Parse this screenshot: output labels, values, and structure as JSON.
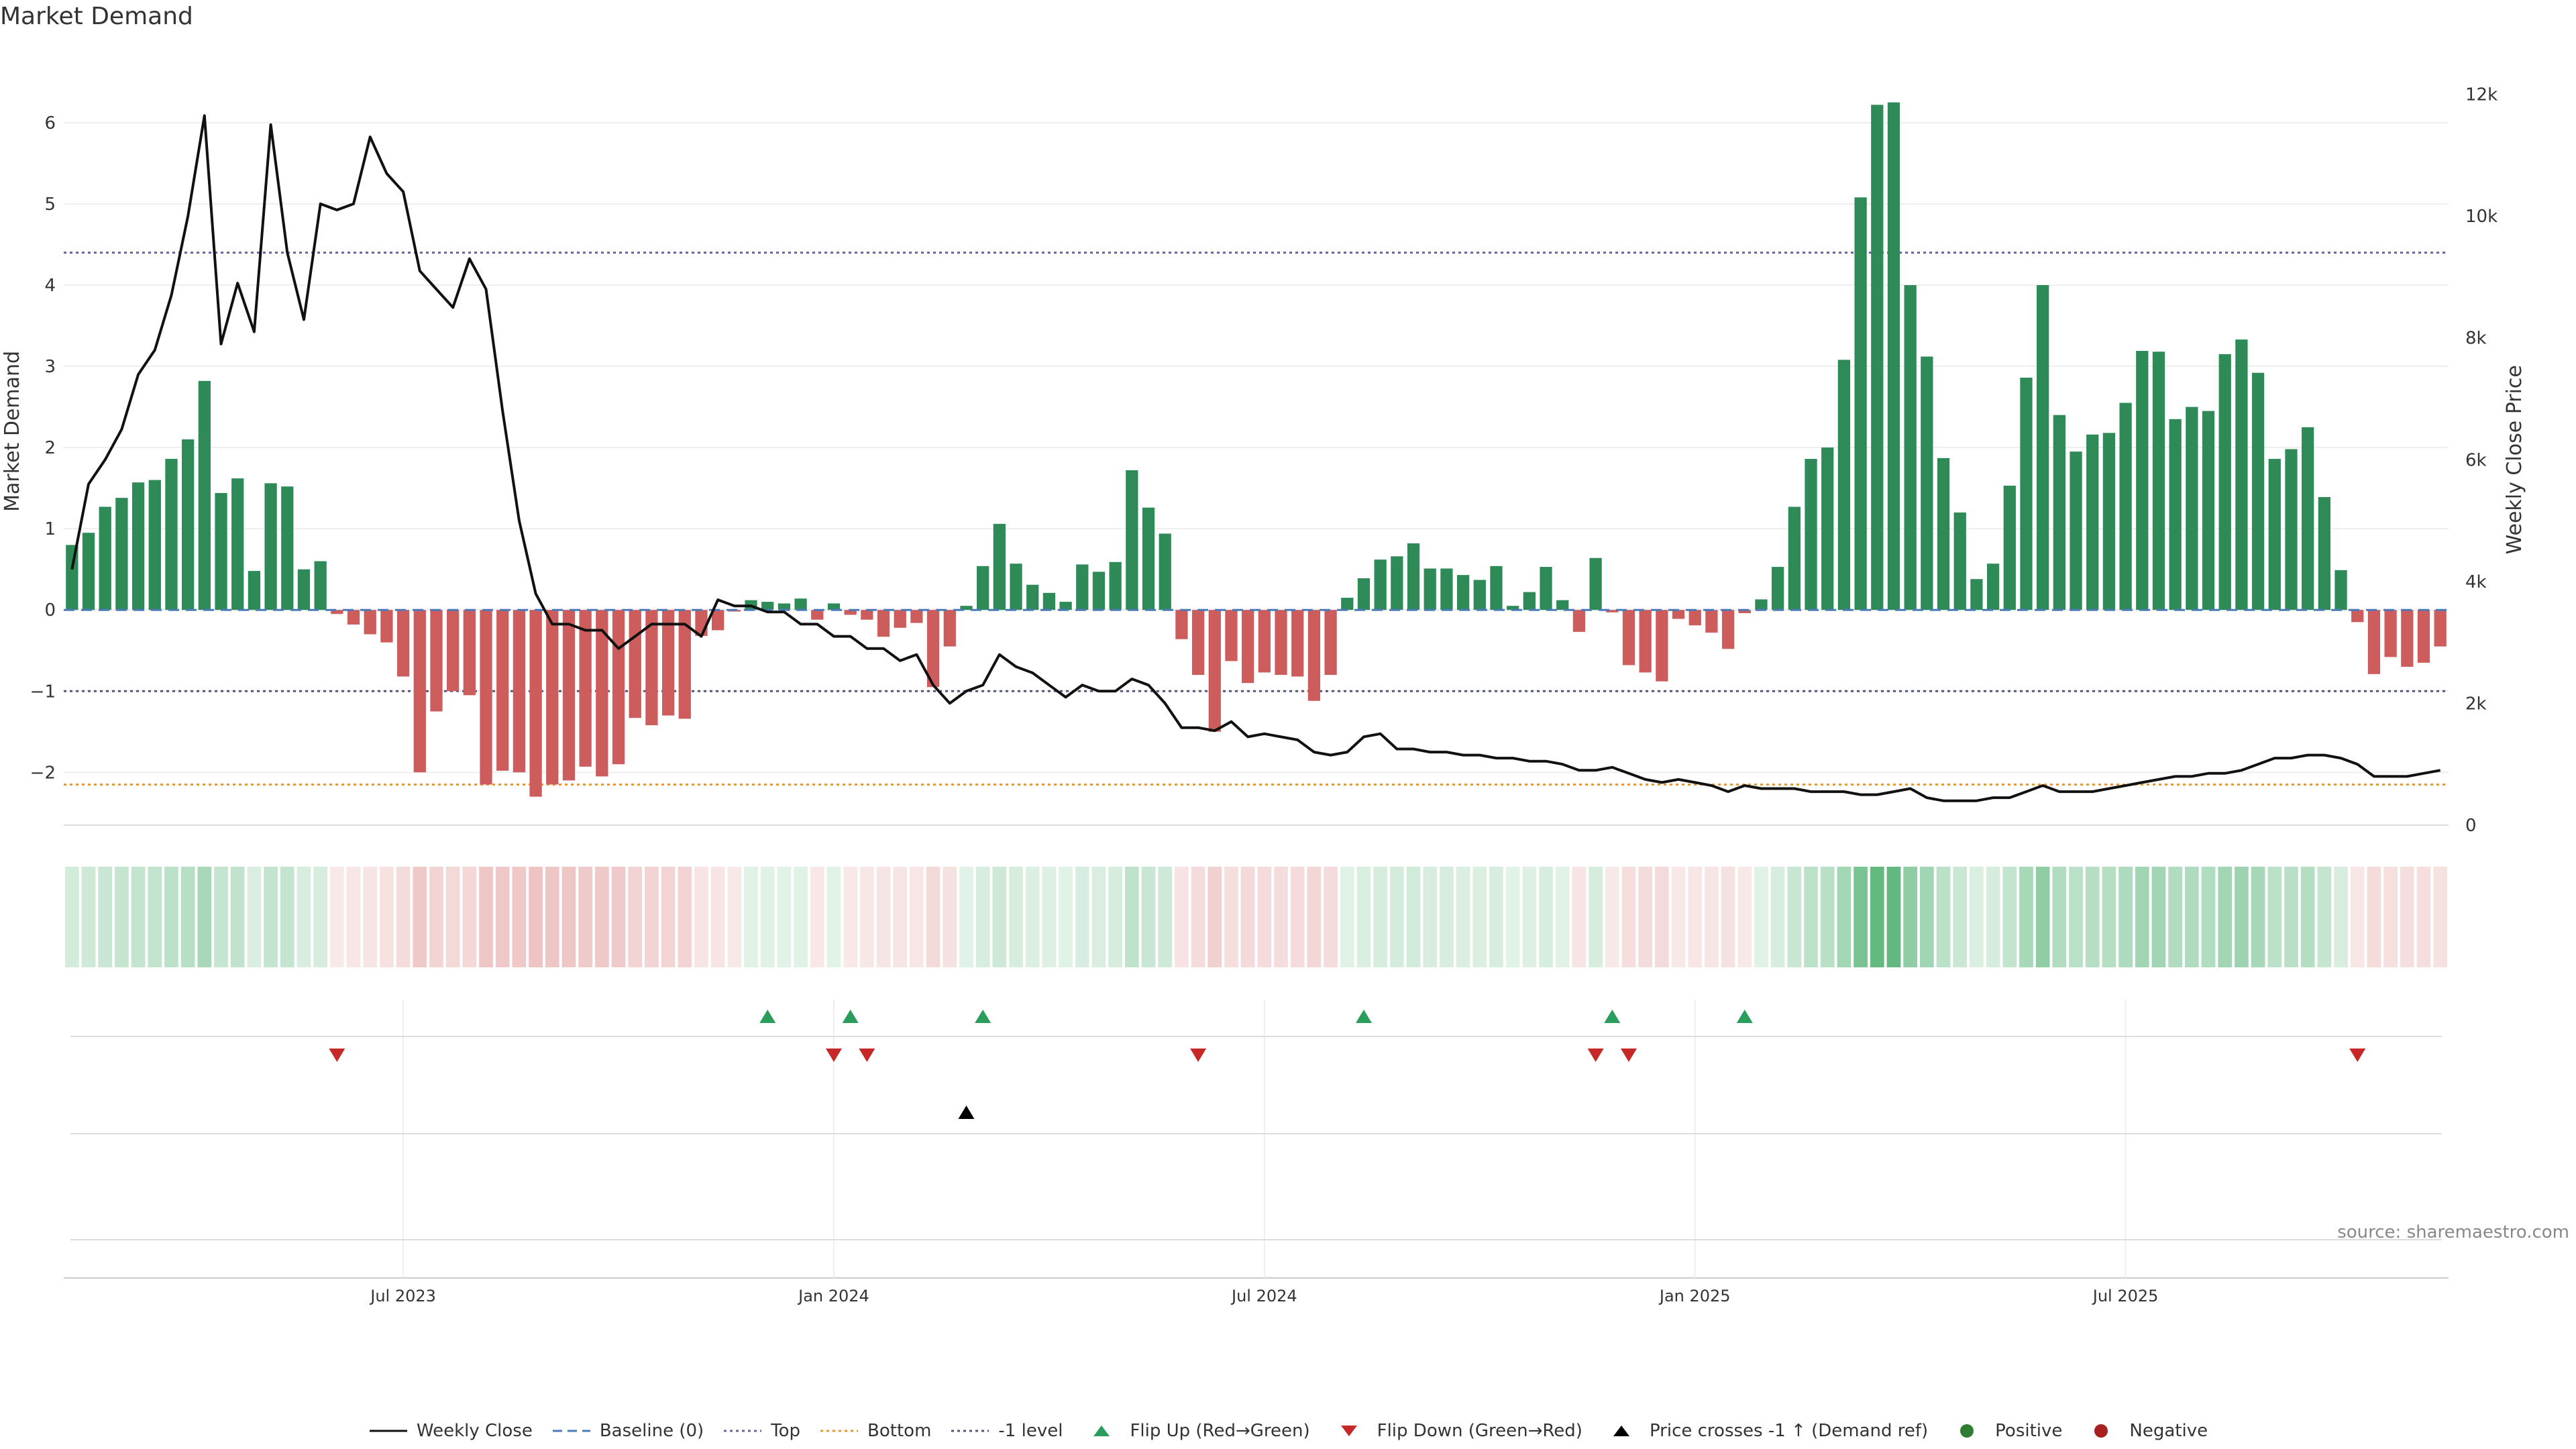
{
  "title": "Market Demand",
  "source": "source: sharemaestro.com",
  "legend": [
    {
      "label": "Weekly Close",
      "kind": "line",
      "color": "#111111"
    },
    {
      "label": "Baseline (0)",
      "kind": "dash",
      "color": "#4a7bb8"
    },
    {
      "label": "Top",
      "kind": "dot",
      "color": "#6b5fa3"
    },
    {
      "label": "Bottom",
      "kind": "dot",
      "color": "#e8962e"
    },
    {
      "label": "-1 level",
      "kind": "dot",
      "color": "#555577"
    },
    {
      "label": "Flip Up (Red→Green)",
      "kind": "tri-up",
      "color": "#2a9d5c"
    },
    {
      "label": "Flip Down (Green→Red)",
      "kind": "tri-down",
      "color": "#c62828"
    },
    {
      "label": "Price crosses -1 ↑ (Demand ref)",
      "kind": "tri-up",
      "color": "#000000"
    },
    {
      "label": "Positive",
      "kind": "dot-marker",
      "color": "#2e7d32"
    },
    {
      "label": "Negative",
      "kind": "dot-marker",
      "color": "#a82020"
    }
  ],
  "colors": {
    "positive_bar": "#2e8b57",
    "negative_bar": "#cd5c5c",
    "price_line": "#111111",
    "top_line": "#6b5fa3",
    "bottom_line": "#e8962e",
    "minus1_line": "#555577",
    "baseline": "#4a7bb8"
  },
  "chart_data": {
    "type": "bar",
    "title": "Market Demand",
    "ylabel": "Market Demand",
    "y2label": "Weekly Close Price",
    "ylim": [
      -2.65,
      6.85
    ],
    "y2lim": [
      0,
      12000
    ],
    "yticks": [
      -2,
      -1,
      0,
      1,
      2,
      3,
      4,
      5,
      6
    ],
    "y2ticks": [
      0,
      2000,
      4000,
      6000,
      8000,
      10000,
      12000
    ],
    "y2tick_labels": [
      "0",
      "2k",
      "4k",
      "6k",
      "8k",
      "10k",
      "12k"
    ],
    "xtick_labels": [
      "Jul 2023",
      "Jan 2024",
      "Jul 2024",
      "Jan 2025",
      "Jul 2025"
    ],
    "xtick_index": [
      20,
      46,
      72,
      98,
      124
    ],
    "grid": true,
    "levels": {
      "top": 4.4,
      "bottom": -2.15,
      "minus1": -1,
      "baseline": 0
    },
    "series": [
      {
        "name": "Market Demand",
        "values": [
          0.8,
          0.95,
          1.27,
          1.38,
          1.57,
          1.6,
          1.86,
          2.1,
          2.82,
          1.44,
          1.62,
          0.48,
          1.56,
          1.52,
          0.5,
          0.6,
          -0.05,
          -0.18,
          -0.3,
          -0.4,
          -0.82,
          -2.0,
          -1.25,
          -1.0,
          -1.05,
          -2.15,
          -1.98,
          -2.0,
          -2.3,
          -2.15,
          -2.1,
          -1.93,
          -2.05,
          -1.9,
          -1.33,
          -1.42,
          -1.3,
          -1.34,
          -0.32,
          -0.25,
          -0.02,
          0.12,
          0.1,
          0.08,
          0.14,
          -0.12,
          0.08,
          -0.06,
          -0.12,
          -0.33,
          -0.22,
          -0.16,
          -0.95,
          -0.45,
          0.05,
          0.54,
          1.06,
          0.57,
          0.31,
          0.21,
          0.1,
          0.56,
          0.47,
          0.59,
          1.72,
          1.26,
          0.94,
          -0.36,
          -0.8,
          -1.5,
          -0.63,
          -0.9,
          -0.77,
          -0.8,
          -0.82,
          -1.12,
          -0.8,
          0.15,
          0.39,
          0.62,
          0.66,
          0.82,
          0.51,
          0.51,
          0.43,
          0.37,
          0.54,
          0.05,
          0.22,
          0.53,
          0.12,
          -0.27,
          0.64,
          -0.03,
          -0.68,
          -0.77,
          -0.88,
          -0.11,
          -0.19,
          -0.28,
          -0.48,
          -0.04,
          0.13,
          0.53,
          1.27,
          1.86,
          2.0,
          3.08,
          5.08,
          6.22,
          6.25,
          4.0,
          3.12,
          1.87,
          1.2,
          0.38,
          0.57,
          1.53,
          2.86,
          4.0,
          2.4,
          1.95,
          2.16,
          2.18,
          2.55,
          3.19,
          3.18,
          2.35,
          2.5,
          2.45,
          3.15,
          3.33,
          2.92,
          1.86,
          1.98,
          2.25,
          1.39,
          0.49,
          -0.15,
          -0.79,
          -0.58,
          -0.7,
          -0.65,
          -0.45
        ]
      },
      {
        "name": "Weekly Close",
        "axis": "y2",
        "values": [
          4200,
          5600,
          6000,
          6500,
          7400,
          7800,
          8700,
          10000,
          11650,
          7900,
          8900,
          8100,
          11500,
          9400,
          8300,
          10200,
          10100,
          10200,
          11300,
          10700,
          10400,
          9100,
          8800,
          8500,
          9300,
          8800,
          6800,
          5000,
          3800,
          3300,
          3300,
          3200,
          3200,
          2900,
          3100,
          3300,
          3300,
          3300,
          3100,
          3700,
          3600,
          3600,
          3500,
          3500,
          3300,
          3300,
          3100,
          3100,
          2900,
          2900,
          2700,
          2800,
          2300,
          2000,
          2200,
          2300,
          2800,
          2600,
          2500,
          2300,
          2100,
          2300,
          2200,
          2200,
          2400,
          2300,
          2000,
          1600,
          1600,
          1550,
          1700,
          1450,
          1500,
          1450,
          1400,
          1200,
          1150,
          1200,
          1450,
          1500,
          1250,
          1250,
          1200,
          1200,
          1150,
          1150,
          1100,
          1100,
          1050,
          1050,
          1000,
          900,
          900,
          950,
          850,
          750,
          700,
          750,
          700,
          650,
          550,
          650,
          600,
          600,
          600,
          550,
          550,
          550,
          500,
          500,
          550,
          600,
          450,
          400,
          400,
          400,
          450,
          450,
          550,
          650,
          550,
          550,
          550,
          600,
          650,
          700,
          750,
          800,
          800,
          850,
          850,
          900,
          1000,
          1100,
          1100,
          1150,
          1150,
          1100,
          1000,
          800,
          800,
          800,
          850,
          900
        ]
      }
    ],
    "flip_up_index": [
      42,
      47,
      55,
      78,
      93,
      101
    ],
    "flip_down_index": [
      16,
      46,
      48,
      68,
      92,
      94,
      138
    ],
    "price_cross_index": [
      54
    ]
  }
}
